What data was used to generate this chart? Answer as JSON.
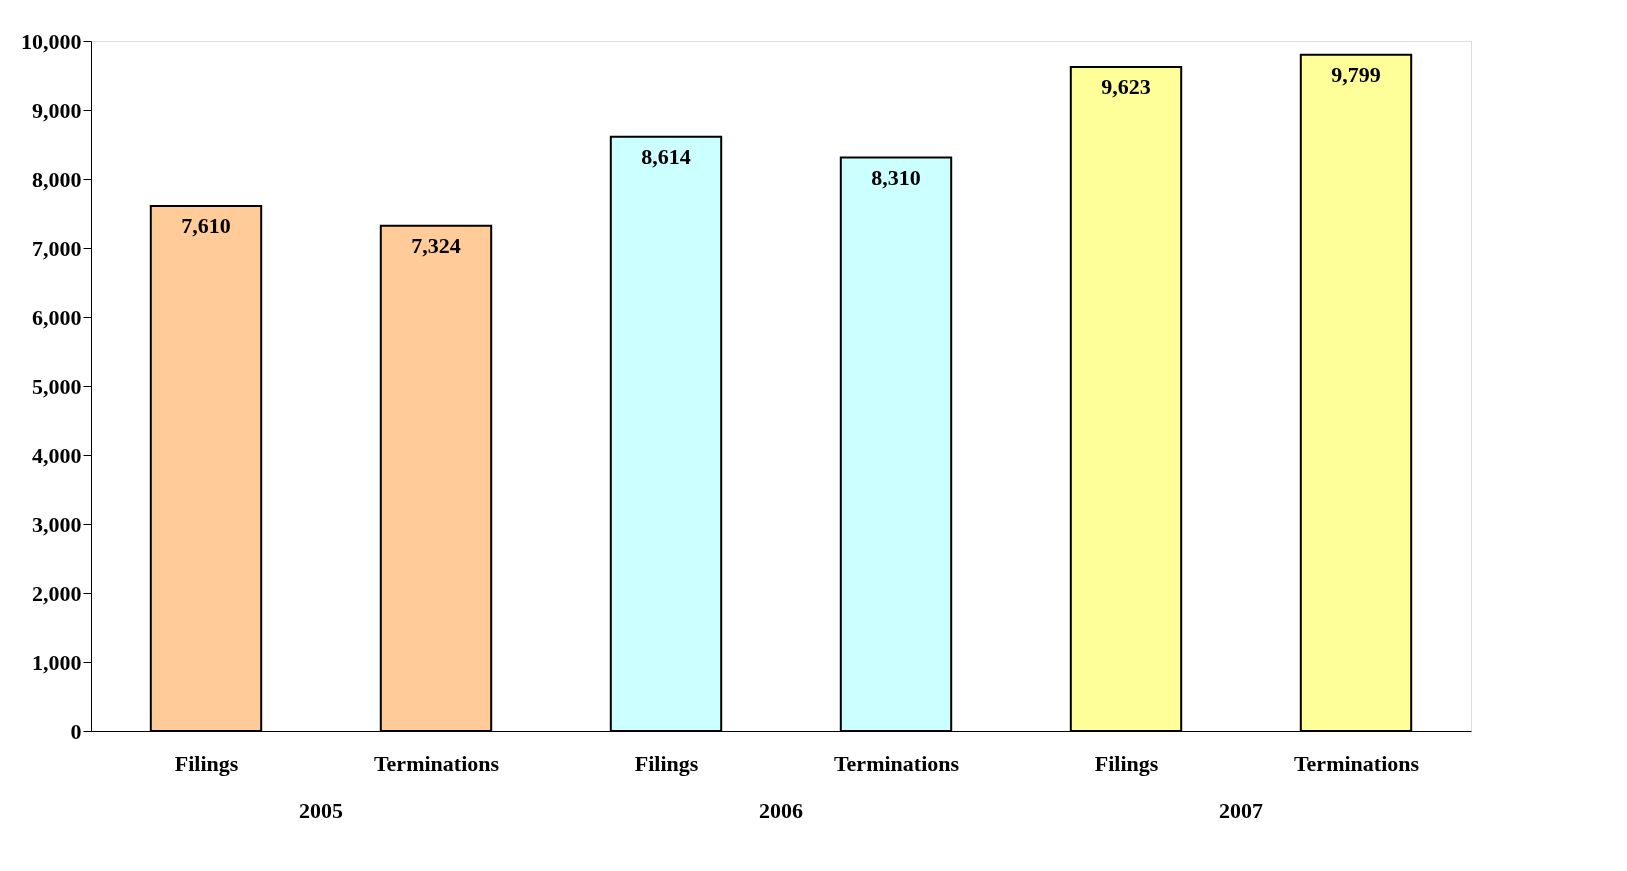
{
  "chart_data": {
    "type": "bar",
    "categories": [
      "Filings",
      "Terminations",
      "Filings",
      "Terminations",
      "Filings",
      "Terminations"
    ],
    "values": [
      7610,
      7324,
      8614,
      8310,
      9623,
      9799
    ],
    "colors": [
      "#ffcc99",
      "#ffcc99",
      "#ccffff",
      "#ccffff",
      "#ffff99",
      "#ffff99"
    ],
    "value_labels": [
      "7,610",
      "7,324",
      "8,614",
      "8,310",
      "9,623",
      "9,799"
    ],
    "annotations": [
      "2005",
      "2006",
      "2007"
    ],
    "ylim": [
      0,
      10000
    ],
    "yticks": [
      0,
      {
        "value": 1000,
        "label": "1,000"
      },
      {
        "value": 2000,
        "label": "2,000"
      },
      {
        "value": 3000,
        "label": "3,000"
      },
      {
        "value": 4000,
        "label": "4,000"
      },
      {
        "value": 5000,
        "label": "5,000"
      },
      {
        "value": 6000,
        "label": "6,000"
      },
      {
        "value": 7000,
        "label": "7,000"
      },
      {
        "value": 8000,
        "label": "8,000"
      },
      {
        "value": 9000,
        "label": "9,000"
      },
      {
        "value": 10000,
        "label": "10,000"
      }
    ],
    "grid": false
  }
}
